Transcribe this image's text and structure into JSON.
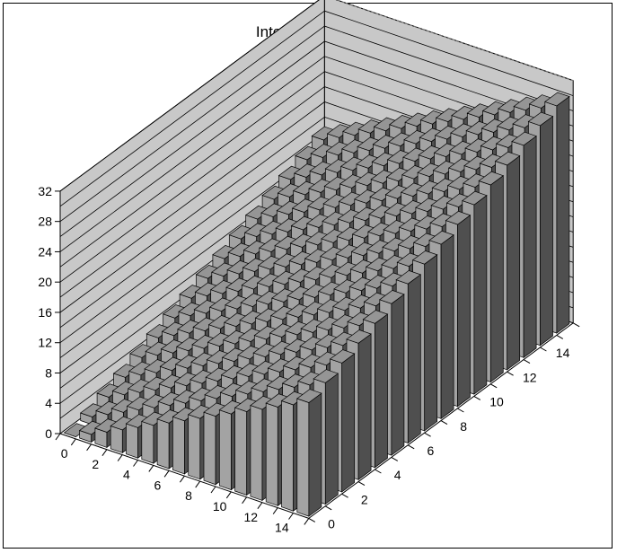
{
  "chart_data": {
    "type": "bar3d",
    "title": "Integer addition",
    "x_categories": [
      0,
      1,
      2,
      3,
      4,
      5,
      6,
      7,
      8,
      9,
      10,
      11,
      12,
      13,
      14,
      15
    ],
    "y_categories": [
      0,
      1,
      2,
      3,
      4,
      5,
      6,
      7,
      8,
      9,
      10,
      11,
      12,
      13,
      14,
      15
    ],
    "x_tick_labels": [
      "0",
      "2",
      "4",
      "6",
      "8",
      "10",
      "12",
      "14"
    ],
    "y_tick_labels": [
      "0",
      "2",
      "4",
      "6",
      "8",
      "10",
      "12",
      "14"
    ],
    "z_tick_labels": [
      "0",
      "4",
      "8",
      "12",
      "16",
      "20",
      "24",
      "28",
      "32"
    ],
    "zlim": [
      0,
      32
    ],
    "value_rule": "x + y",
    "values": [
      [
        0,
        1,
        2,
        3,
        4,
        5,
        6,
        7,
        8,
        9,
        10,
        11,
        12,
        13,
        14,
        15
      ],
      [
        1,
        2,
        3,
        4,
        5,
        6,
        7,
        8,
        9,
        10,
        11,
        12,
        13,
        14,
        15,
        16
      ],
      [
        2,
        3,
        4,
        5,
        6,
        7,
        8,
        9,
        10,
        11,
        12,
        13,
        14,
        15,
        16,
        17
      ],
      [
        3,
        4,
        5,
        6,
        7,
        8,
        9,
        10,
        11,
        12,
        13,
        14,
        15,
        16,
        17,
        18
      ],
      [
        4,
        5,
        6,
        7,
        8,
        9,
        10,
        11,
        12,
        13,
        14,
        15,
        16,
        17,
        18,
        19
      ],
      [
        5,
        6,
        7,
        8,
        9,
        10,
        11,
        12,
        13,
        14,
        15,
        16,
        17,
        18,
        19,
        20
      ],
      [
        6,
        7,
        8,
        9,
        10,
        11,
        12,
        13,
        14,
        15,
        16,
        17,
        18,
        19,
        20,
        21
      ],
      [
        7,
        8,
        9,
        10,
        11,
        12,
        13,
        14,
        15,
        16,
        17,
        18,
        19,
        20,
        21,
        22
      ],
      [
        8,
        9,
        10,
        11,
        12,
        13,
        14,
        15,
        16,
        17,
        18,
        19,
        20,
        21,
        22,
        23
      ],
      [
        9,
        10,
        11,
        12,
        13,
        14,
        15,
        16,
        17,
        18,
        19,
        20,
        21,
        22,
        23,
        24
      ],
      [
        10,
        11,
        12,
        13,
        14,
        15,
        16,
        17,
        18,
        19,
        20,
        21,
        22,
        23,
        24,
        25
      ],
      [
        11,
        12,
        13,
        14,
        15,
        16,
        17,
        18,
        19,
        20,
        21,
        22,
        23,
        24,
        25,
        26
      ],
      [
        12,
        13,
        14,
        15,
        16,
        17,
        18,
        19,
        20,
        21,
        22,
        23,
        24,
        25,
        26,
        27
      ],
      [
        13,
        14,
        15,
        16,
        17,
        18,
        19,
        20,
        21,
        22,
        23,
        24,
        25,
        26,
        27,
        28
      ],
      [
        14,
        15,
        16,
        17,
        18,
        19,
        20,
        21,
        22,
        23,
        24,
        25,
        26,
        27,
        28,
        29
      ],
      [
        15,
        16,
        17,
        18,
        19,
        20,
        21,
        22,
        23,
        24,
        25,
        26,
        27,
        28,
        29,
        30
      ]
    ],
    "grid": true,
    "colors": {
      "wall": "#c8c8c8",
      "bar_top": "#959595",
      "bar_front": "#a3a3a3",
      "bar_side": "#4f4f4f",
      "gridline": "#000000"
    }
  }
}
